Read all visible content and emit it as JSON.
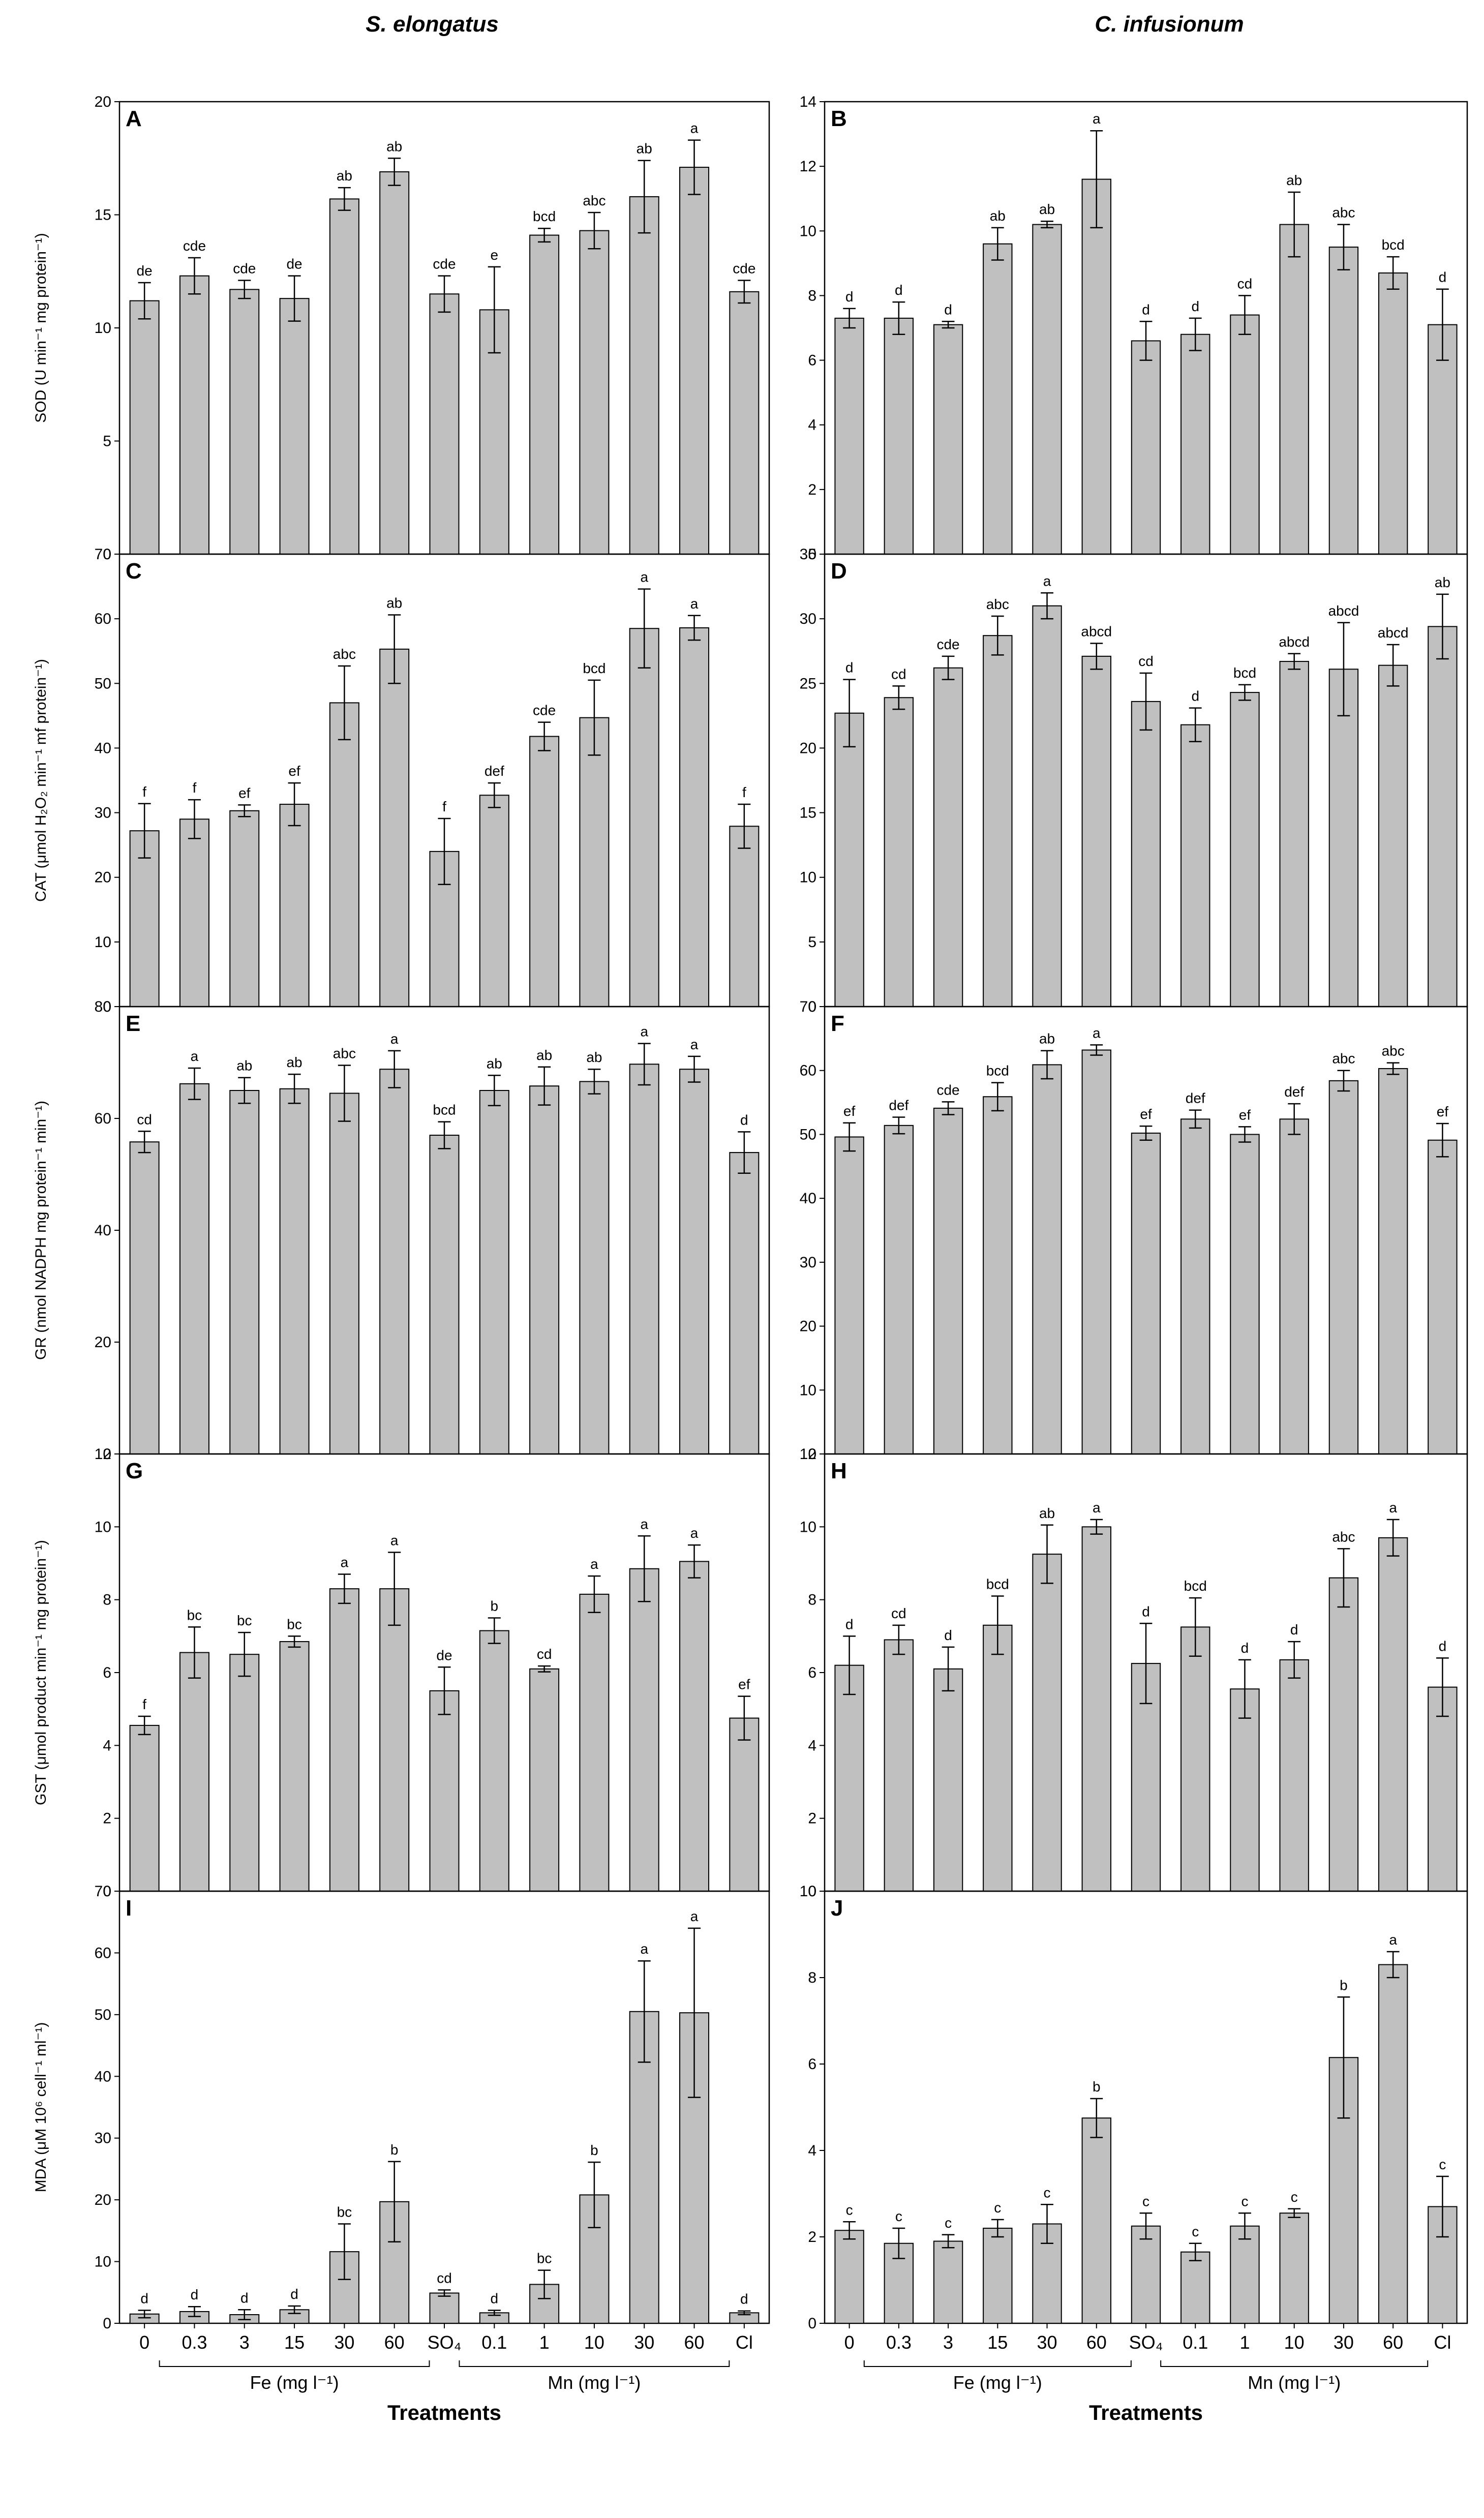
{
  "chart_data": [
    {
      "type": "bar",
      "panel": "A",
      "column_title": "S. elongatus",
      "ylabel": "SOD (U min⁻¹ mg protein⁻¹)",
      "ylim": [
        0,
        20
      ],
      "yticks": [
        "0",
        "5",
        "10",
        "15",
        "20"
      ],
      "values": [
        11.2,
        12.3,
        11.7,
        11.3,
        15.7,
        16.9,
        11.5,
        10.8,
        14.1,
        14.3,
        15.8,
        17.1,
        11.6
      ],
      "errors": [
        0.8,
        0.8,
        0.4,
        1.0,
        0.5,
        0.6,
        0.8,
        1.9,
        0.3,
        0.8,
        1.6,
        1.2,
        0.5
      ],
      "labels": [
        "de",
        "cde",
        "cde",
        "de",
        "ab",
        "ab",
        "cde",
        "e",
        "bcd",
        "abc",
        "ab",
        "a",
        "cde"
      ]
    },
    {
      "type": "bar",
      "panel": "B",
      "column_title": "C. infusionum",
      "ylabel": "",
      "ylim": [
        0,
        14
      ],
      "yticks": [
        "0",
        "2",
        "4",
        "6",
        "8",
        "10",
        "12",
        "14"
      ],
      "values": [
        7.3,
        7.3,
        7.1,
        9.6,
        10.2,
        11.6,
        6.6,
        6.8,
        7.4,
        10.2,
        9.5,
        8.7,
        7.1
      ],
      "errors": [
        0.3,
        0.5,
        0.1,
        0.5,
        0.1,
        1.5,
        0.6,
        0.5,
        0.6,
        1.0,
        0.7,
        0.5,
        1.1
      ],
      "labels": [
        "d",
        "d",
        "d",
        "ab",
        "ab",
        "a",
        "d",
        "d",
        "cd",
        "ab",
        "abc",
        "bcd",
        "d"
      ]
    },
    {
      "type": "bar",
      "panel": "C",
      "ylabel": "CAT (μmol H₂O₂ min⁻¹ mf protein⁻¹)",
      "ylim": [
        0,
        70
      ],
      "yticks": [
        "0",
        "10",
        "20",
        "30",
        "40",
        "50",
        "60",
        "70"
      ],
      "values": [
        27.2,
        29.0,
        30.3,
        31.3,
        47.0,
        55.3,
        24.0,
        32.7,
        41.8,
        44.7,
        58.5,
        58.6,
        27.9
      ],
      "errors": [
        4.2,
        3.0,
        0.9,
        3.3,
        5.7,
        5.3,
        5.1,
        1.9,
        2.2,
        5.8,
        6.1,
        1.9,
        3.4
      ],
      "labels": [
        "f",
        "f",
        "ef",
        "ef",
        "abc",
        "ab",
        "f",
        "def",
        "cde",
        "bcd",
        "a",
        "a",
        "f"
      ]
    },
    {
      "type": "bar",
      "panel": "D",
      "ylabel": "",
      "ylim": [
        0,
        35
      ],
      "yticks": [
        "0",
        "5",
        "10",
        "15",
        "20",
        "25",
        "30",
        "35"
      ],
      "values": [
        22.7,
        23.9,
        26.2,
        28.7,
        31.0,
        27.1,
        23.6,
        21.8,
        24.3,
        26.7,
        26.1,
        26.4,
        29.4
      ],
      "errors": [
        2.6,
        0.9,
        0.9,
        1.5,
        1.0,
        1.0,
        2.2,
        1.3,
        0.6,
        0.6,
        3.6,
        1.6,
        2.5
      ],
      "labels": [
        "d",
        "cd",
        "cde",
        "abc",
        "a",
        "abcd",
        "cd",
        "d",
        "bcd",
        "abcd",
        "abcd",
        "abcd",
        "ab"
      ]
    },
    {
      "type": "bar",
      "panel": "E",
      "ylabel": "GR (nmol NADPH mg protein⁻¹ min⁻¹)",
      "ylim": [
        0,
        80
      ],
      "yticks": [
        "0",
        "20",
        "40",
        "60",
        "80"
      ],
      "values": [
        55.8,
        66.2,
        65.0,
        65.3,
        64.5,
        68.8,
        57.0,
        65.0,
        65.8,
        66.6,
        69.7,
        68.8,
        53.9
      ],
      "errors": [
        1.9,
        2.8,
        2.3,
        2.6,
        5.0,
        3.3,
        2.4,
        2.7,
        3.4,
        2.2,
        3.7,
        2.3,
        3.7
      ],
      "labels": [
        "cd",
        "a",
        "ab",
        "ab",
        "abc",
        "a",
        "bcd",
        "ab",
        "ab",
        "ab",
        "a",
        "a",
        "d"
      ]
    },
    {
      "type": "bar",
      "panel": "F",
      "ylabel": "",
      "ylim": [
        0,
        70
      ],
      "yticks": [
        "0",
        "10",
        "20",
        "30",
        "40",
        "50",
        "60",
        "70"
      ],
      "values": [
        49.6,
        51.4,
        54.1,
        55.9,
        60.9,
        63.2,
        50.2,
        52.4,
        50.0,
        52.4,
        58.4,
        60.3,
        49.1
      ],
      "errors": [
        2.2,
        1.3,
        1.0,
        2.2,
        2.2,
        0.8,
        1.1,
        1.4,
        1.2,
        2.4,
        1.6,
        0.9,
        2.6
      ],
      "labels": [
        "ef",
        "def",
        "cde",
        "bcd",
        "ab",
        "a",
        "ef",
        "def",
        "ef",
        "def",
        "abc",
        "abc",
        "ef"
      ]
    },
    {
      "type": "bar",
      "panel": "G",
      "ylabel": "GST (μmol product min⁻¹ mg protein⁻¹)",
      "ylim": [
        0,
        12
      ],
      "yticks": [
        "0",
        "2",
        "4",
        "6",
        "8",
        "10",
        "12"
      ],
      "values": [
        4.55,
        6.55,
        6.5,
        6.85,
        8.3,
        8.3,
        5.5,
        7.15,
        6.1,
        8.15,
        8.85,
        9.05,
        4.75
      ],
      "errors": [
        0.25,
        0.7,
        0.6,
        0.15,
        0.4,
        1.0,
        0.65,
        0.35,
        0.08,
        0.5,
        0.9,
        0.45,
        0.6
      ],
      "labels": [
        "f",
        "bc",
        "bc",
        "bc",
        "a",
        "a",
        "de",
        "b",
        "cd",
        "a",
        "a",
        "a",
        "ef"
      ]
    },
    {
      "type": "bar",
      "panel": "H",
      "ylabel": "",
      "ylim": [
        0,
        12
      ],
      "yticks": [
        "0",
        "2",
        "4",
        "6",
        "8",
        "10",
        "12"
      ],
      "values": [
        6.2,
        6.9,
        6.1,
        7.3,
        9.25,
        10.0,
        6.25,
        7.25,
        5.55,
        6.35,
        8.6,
        9.7,
        5.6
      ],
      "errors": [
        0.8,
        0.4,
        0.6,
        0.8,
        0.8,
        0.2,
        1.1,
        0.8,
        0.8,
        0.5,
        0.8,
        0.5,
        0.8
      ],
      "labels": [
        "d",
        "cd",
        "d",
        "bcd",
        "ab",
        "a",
        "d",
        "bcd",
        "d",
        "d",
        "abc",
        "a",
        "d"
      ]
    },
    {
      "type": "bar",
      "panel": "I",
      "ylabel": "MDA (μM 10⁶ cell⁻¹ ml⁻¹)",
      "ylim": [
        0,
        70
      ],
      "yticks": [
        "0",
        "10",
        "20",
        "30",
        "40",
        "50",
        "60",
        "70"
      ],
      "values": [
        1.5,
        1.9,
        1.4,
        2.2,
        11.6,
        19.7,
        4.9,
        1.7,
        6.3,
        20.8,
        50.5,
        50.3,
        1.7
      ],
      "errors": [
        0.6,
        0.8,
        0.8,
        0.6,
        4.5,
        6.5,
        0.5,
        0.4,
        2.3,
        5.3,
        8.2,
        13.7,
        0.3
      ],
      "labels": [
        "d",
        "d",
        "d",
        "d",
        "bc",
        "b",
        "cd",
        "d",
        "bc",
        "b",
        "a",
        "a",
        "d"
      ],
      "show_xaxis": true
    },
    {
      "type": "bar",
      "panel": "J",
      "ylabel": "",
      "ylim": [
        0,
        10
      ],
      "yticks": [
        "0",
        "2",
        "4",
        "6",
        "8",
        "10"
      ],
      "values": [
        2.15,
        1.85,
        1.9,
        2.2,
        2.3,
        4.75,
        2.25,
        1.65,
        2.25,
        2.55,
        6.15,
        8.3,
        2.7
      ],
      "errors": [
        0.2,
        0.35,
        0.15,
        0.2,
        0.45,
        0.45,
        0.3,
        0.2,
        0.3,
        0.1,
        1.4,
        0.3,
        0.7
      ],
      "labels": [
        "c",
        "c",
        "c",
        "c",
        "c",
        "b",
        "c",
        "c",
        "c",
        "c",
        "b",
        "a",
        "c"
      ],
      "show_xaxis": true
    }
  ],
  "x_axis": {
    "categories": [
      "0",
      "0.3",
      "3",
      "15",
      "30",
      "60",
      "SO₄",
      "0.1",
      "1",
      "10",
      "30",
      "60",
      "Cl"
    ],
    "groups": [
      {
        "label": "Fe (mg l⁻¹)",
        "from": 1,
        "to": 5
      },
      {
        "label": "Mn (mg l⁻¹)",
        "from": 7,
        "to": 11
      }
    ],
    "title": "Treatments"
  }
}
